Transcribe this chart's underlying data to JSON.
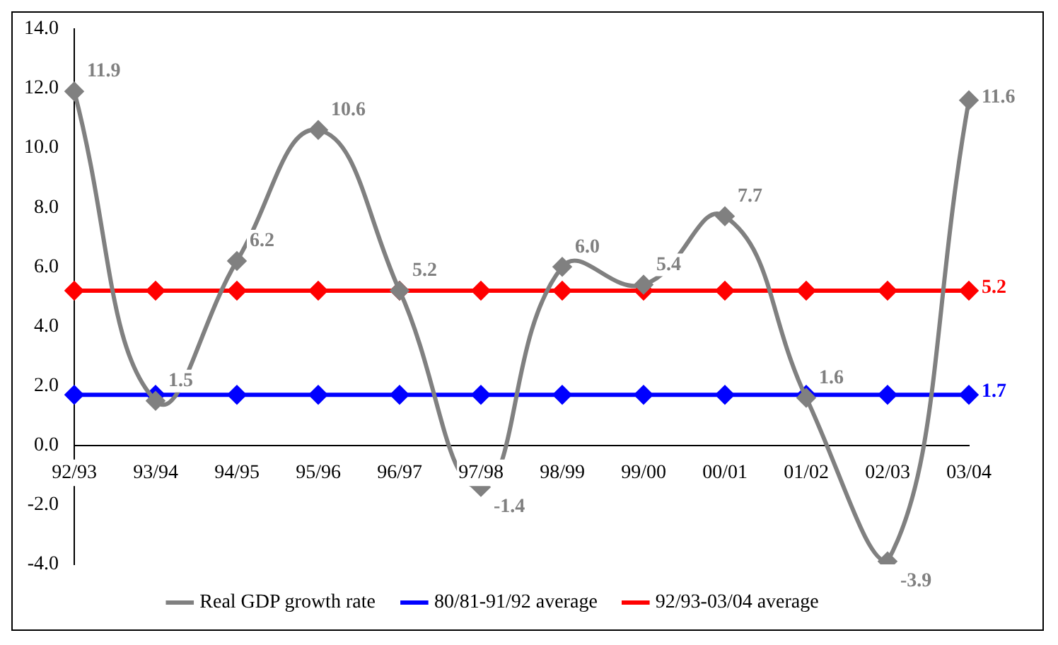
{
  "chart_data": {
    "type": "line",
    "categories": [
      "92/93",
      "93/94",
      "94/95",
      "95/96",
      "96/97",
      "97/98",
      "98/99",
      "99/00",
      "00/01",
      "01/02",
      "02/03",
      "03/04"
    ],
    "series": [
      {
        "name": "Real GDP growth rate",
        "color": "#808080",
        "values": [
          11.9,
          1.5,
          6.2,
          10.6,
          5.2,
          -1.4,
          6.0,
          5.4,
          7.7,
          1.6,
          -3.9,
          11.6
        ],
        "value_labels": [
          "11.9",
          "1.5",
          "6.2",
          "10.6",
          "5.2",
          "-1.4",
          "6.0",
          "5.4",
          "7.7",
          "1.6",
          "-3.9",
          "11.6"
        ]
      },
      {
        "name": "80/81-91/92 average",
        "color": "#0000ff",
        "type": "line",
        "values": [
          1.7,
          1.7,
          1.7,
          1.7,
          1.7,
          1.7,
          1.7,
          1.7,
          1.7,
          1.7,
          1.7,
          1.7
        ],
        "value_labels": [
          null,
          null,
          null,
          null,
          null,
          null,
          null,
          null,
          null,
          null,
          null,
          "1.7"
        ]
      },
      {
        "name": "92/93-03/04 average",
        "color": "#ff0000",
        "type": "line",
        "values": [
          5.2,
          5.2,
          5.2,
          5.2,
          5.2,
          5.2,
          5.2,
          5.2,
          5.2,
          5.2,
          5.2,
          5.2
        ],
        "value_labels": [
          null,
          null,
          null,
          null,
          null,
          null,
          null,
          null,
          null,
          null,
          null,
          "5.2"
        ]
      }
    ],
    "ylim": [
      -4,
      14
    ],
    "yticks": [
      {
        "value": -4,
        "label": "-4.0"
      },
      {
        "value": -2,
        "label": "-2.0"
      },
      {
        "value": 0,
        "label": "0.0"
      },
      {
        "value": 2,
        "label": "2.0"
      },
      {
        "value": 4,
        "label": "4.0"
      },
      {
        "value": 6,
        "label": "6.0"
      },
      {
        "value": 8,
        "label": "8.0"
      },
      {
        "value": 10,
        "label": "10.0"
      },
      {
        "value": 12,
        "label": "12.0"
      },
      {
        "value": 14,
        "label": "14.0"
      }
    ],
    "grid": false,
    "legend": "bottom",
    "marker": "diamond",
    "line_style": "solid"
  }
}
